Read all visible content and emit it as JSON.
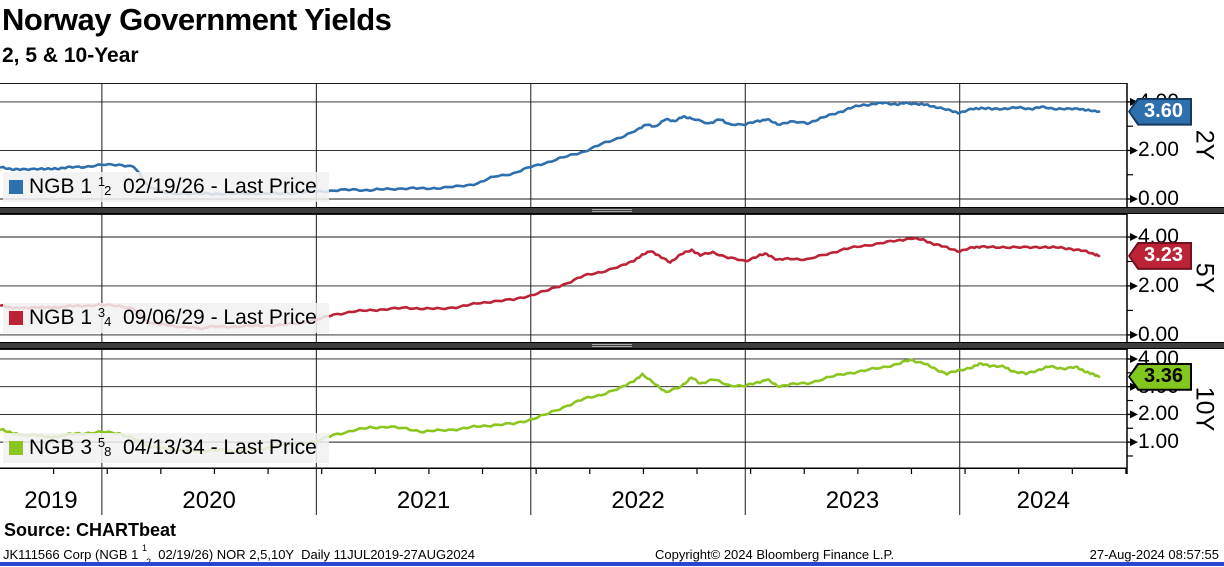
{
  "header": {
    "title": "Norway Government Yields",
    "subtitle": "2, 5 & 10-Year"
  },
  "footer": {
    "source": "Source: CHARTbeat",
    "ticker": {
      "prefix": "JK111566 Corp (NGB 1 ",
      "frac_num": "1",
      "frac_den": "2",
      "suffix": "  02/19/26) NOR 2,5,10Y  Daily 11JUL2019-27AUG2024"
    },
    "copyright": "Copyright© 2024 Bloomberg Finance L.P.",
    "timestamp": "27-Aug-2024 08:57:55"
  },
  "colors": {
    "grid": "#1a1a1a",
    "axis": "#000000",
    "separator": "#3d3d3d",
    "legend_bg": "rgba(241,241,241,0.86)",
    "bottom_strip": "#2846d2",
    "blue": "#2e6fad",
    "red": "#bc2336",
    "green": "#8cc520"
  },
  "chart_data": {
    "type": "line",
    "title": "Norway Government Yields 2, 5 & 10-Year",
    "x_axis": {
      "range": [
        2019.525,
        2024.78
      ],
      "gridline_years": [
        2020,
        2021,
        2022,
        2023,
        2024
      ],
      "labels": [
        "2019",
        "2020",
        "2021",
        "2022",
        "2023",
        "2024"
      ],
      "minor_tick_step": 0.25,
      "period": "Daily 11JUL2019-27AUG2024"
    },
    "panels": [
      {
        "axis_name": "2Y",
        "security": "NGB 1 1/2 02/19/26",
        "legend": {
          "prefix": "NGB 1 ",
          "frac_num": "1",
          "frac_den": "2",
          "suffix": "  02/19/26 - Last Price"
        },
        "last_price": "3.60",
        "line_color": "#2e6fad",
        "badge": {
          "fill": "#2e6fad",
          "border": "#16395e",
          "text_color": "#ffffff"
        },
        "ylim": [
          -0.33,
          4.78
        ],
        "yticks": [
          {
            "label": "4.00",
            "value": 4
          },
          {
            "label": "2.00",
            "value": 2
          },
          {
            "label": "0.00",
            "value": 0
          }
        ],
        "minor_yticks": [
          1,
          3
        ],
        "series": {
          "x": [
            2019.53,
            2019.58,
            2019.63,
            2019.7,
            2019.75,
            2019.8,
            2019.85,
            2019.92,
            2020.0,
            2020.08,
            2020.15,
            2020.21,
            2020.27,
            2020.33,
            2020.42,
            2020.5,
            2020.58,
            2020.67,
            2020.75,
            2020.83,
            2020.92,
            2021.0,
            2021.08,
            2021.17,
            2021.25,
            2021.33,
            2021.42,
            2021.5,
            2021.58,
            2021.67,
            2021.75,
            2021.83,
            2021.92,
            2022.0,
            2022.08,
            2022.17,
            2022.25,
            2022.33,
            2022.42,
            2022.5,
            2022.54,
            2022.58,
            2022.63,
            2022.67,
            2022.71,
            2022.75,
            2022.83,
            2022.88,
            2022.92,
            2023.0,
            2023.06,
            2023.1,
            2023.15,
            2023.21,
            2023.29,
            2023.35,
            2023.42,
            2023.48,
            2023.54,
            2023.6,
            2023.65,
            2023.71,
            2023.75,
            2023.81,
            2023.85,
            2023.9,
            2023.96,
            2024.0,
            2024.06,
            2024.1,
            2024.15,
            2024.21,
            2024.27,
            2024.33,
            2024.38,
            2024.44,
            2024.5,
            2024.56,
            2024.6,
            2024.65
          ],
          "y": [
            1.3,
            1.24,
            1.2,
            1.26,
            1.22,
            1.27,
            1.3,
            1.33,
            1.4,
            1.42,
            1.32,
            0.6,
            0.3,
            0.24,
            0.2,
            0.23,
            0.2,
            0.24,
            0.21,
            0.23,
            0.26,
            0.31,
            0.34,
            0.39,
            0.36,
            0.41,
            0.44,
            0.43,
            0.46,
            0.52,
            0.64,
            0.92,
            1.06,
            1.32,
            1.52,
            1.76,
            1.96,
            2.26,
            2.55,
            2.85,
            3.1,
            2.95,
            3.32,
            3.18,
            3.42,
            3.3,
            3.12,
            3.28,
            3.1,
            3.06,
            3.22,
            3.28,
            3.08,
            3.18,
            3.12,
            3.32,
            3.52,
            3.72,
            3.86,
            3.92,
            3.96,
            3.9,
            3.95,
            3.92,
            3.86,
            3.78,
            3.62,
            3.56,
            3.7,
            3.76,
            3.7,
            3.73,
            3.76,
            3.72,
            3.78,
            3.73,
            3.7,
            3.73,
            3.64,
            3.6
          ]
        }
      },
      {
        "axis_name": "5Y",
        "security": "NGB 1 3/4 09/06/29",
        "legend": {
          "prefix": "NGB 1 ",
          "frac_num": "3",
          "frac_den": "4",
          "suffix": "  09/06/29 - Last Price"
        },
        "last_price": "3.23",
        "line_color": "#bc2336",
        "badge": {
          "fill": "#bc2336",
          "border": "#71111f",
          "text_color": "#ffffff"
        },
        "ylim": [
          -0.29,
          4.94
        ],
        "yticks": [
          {
            "label": "4.00",
            "value": 4
          },
          {
            "label": "2.00",
            "value": 2
          },
          {
            "label": "0.00",
            "value": 0
          }
        ],
        "minor_yticks": [
          1,
          3
        ],
        "series": {
          "x": [
            2019.53,
            2019.58,
            2019.63,
            2019.7,
            2019.75,
            2019.8,
            2019.85,
            2019.92,
            2020.0,
            2020.08,
            2020.15,
            2020.21,
            2020.27,
            2020.33,
            2020.42,
            2020.46,
            2020.5,
            2020.58,
            2020.67,
            2020.75,
            2020.83,
            2020.92,
            2021.0,
            2021.08,
            2021.17,
            2021.25,
            2021.33,
            2021.42,
            2021.5,
            2021.58,
            2021.67,
            2021.75,
            2021.83,
            2021.92,
            2022.0,
            2022.08,
            2022.17,
            2022.25,
            2022.33,
            2022.42,
            2022.48,
            2022.52,
            2022.56,
            2022.6,
            2022.65,
            2022.7,
            2022.75,
            2022.79,
            2022.85,
            2022.92,
            2023.0,
            2023.06,
            2023.1,
            2023.15,
            2023.21,
            2023.29,
            2023.38,
            2023.46,
            2023.54,
            2023.63,
            2023.71,
            2023.77,
            2023.83,
            2023.88,
            2023.94,
            2024.0,
            2024.06,
            2024.1,
            2024.17,
            2024.25,
            2024.33,
            2024.4,
            2024.46,
            2024.52,
            2024.58,
            2024.63,
            2024.65
          ],
          "y": [
            1.2,
            1.12,
            1.08,
            1.15,
            1.1,
            1.14,
            1.17,
            1.2,
            1.22,
            1.2,
            1.05,
            0.55,
            0.42,
            0.38,
            0.3,
            0.26,
            0.33,
            0.34,
            0.36,
            0.37,
            0.4,
            0.48,
            0.62,
            0.82,
            0.96,
            1.0,
            1.06,
            1.1,
            1.08,
            1.06,
            1.16,
            1.28,
            1.38,
            1.44,
            1.62,
            1.82,
            2.12,
            2.42,
            2.58,
            2.8,
            3.05,
            3.25,
            3.45,
            3.2,
            2.98,
            3.28,
            3.48,
            3.25,
            3.38,
            3.15,
            3.02,
            3.22,
            3.32,
            3.06,
            3.12,
            3.08,
            3.3,
            3.5,
            3.62,
            3.75,
            3.85,
            3.95,
            3.88,
            3.72,
            3.56,
            3.42,
            3.56,
            3.62,
            3.56,
            3.6,
            3.56,
            3.6,
            3.56,
            3.52,
            3.42,
            3.3,
            3.23
          ]
        }
      },
      {
        "axis_name": "10Y",
        "security": "NGB 3 5/8 04/13/34",
        "legend": {
          "prefix": "NGB 3 ",
          "frac_num": "5",
          "frac_den": "8",
          "suffix": "  04/13/34 - Last Price"
        },
        "last_price": "3.36",
        "line_color": "#8cc520",
        "badge": {
          "fill": "#82c71e",
          "border": "#000000",
          "text_color": "#000000"
        },
        "ylim": [
          0.03,
          4.36
        ],
        "yticks": [
          {
            "label": "4.00",
            "value": 4
          },
          {
            "label": "3.00",
            "value": 3
          },
          {
            "label": "2.00",
            "value": 2
          },
          {
            "label": "1.00",
            "value": 1
          }
        ],
        "minor_yticks": [
          0.5,
          1.5,
          2.5,
          3.5
        ],
        "series": {
          "x": [
            2019.53,
            2019.58,
            2019.63,
            2019.7,
            2019.75,
            2019.8,
            2019.85,
            2019.92,
            2020.0,
            2020.08,
            2020.15,
            2020.21,
            2020.27,
            2020.33,
            2020.42,
            2020.46,
            2020.5,
            2020.58,
            2020.63,
            2020.7,
            2020.79,
            2020.88,
            2021.0,
            2021.08,
            2021.17,
            2021.25,
            2021.33,
            2021.42,
            2021.5,
            2021.58,
            2021.67,
            2021.75,
            2021.83,
            2021.92,
            2022.0,
            2022.08,
            2022.17,
            2022.25,
            2022.33,
            2022.42,
            2022.48,
            2022.52,
            2022.58,
            2022.63,
            2022.7,
            2022.75,
            2022.79,
            2022.85,
            2022.92,
            2023.0,
            2023.06,
            2023.1,
            2023.15,
            2023.21,
            2023.29,
            2023.38,
            2023.46,
            2023.54,
            2023.63,
            2023.71,
            2023.77,
            2023.83,
            2023.88,
            2023.94,
            2024.0,
            2024.06,
            2024.1,
            2024.15,
            2024.21,
            2024.25,
            2024.31,
            2024.37,
            2024.42,
            2024.48,
            2024.54,
            2024.58,
            2024.62,
            2024.65
          ],
          "y": [
            1.45,
            1.35,
            1.22,
            1.28,
            1.15,
            1.22,
            1.28,
            1.32,
            1.36,
            1.32,
            1.12,
            0.88,
            0.78,
            0.74,
            0.7,
            0.63,
            0.69,
            0.72,
            0.66,
            0.73,
            0.82,
            0.92,
            1.02,
            1.26,
            1.42,
            1.52,
            1.56,
            1.48,
            1.38,
            1.42,
            1.48,
            1.56,
            1.62,
            1.66,
            1.82,
            2.02,
            2.32,
            2.56,
            2.72,
            2.95,
            3.22,
            3.42,
            3.12,
            2.78,
            3.02,
            3.32,
            3.12,
            3.26,
            3.06,
            3.02,
            3.16,
            3.26,
            3.02,
            3.08,
            3.12,
            3.32,
            3.46,
            3.56,
            3.68,
            3.82,
            3.96,
            3.86,
            3.65,
            3.48,
            3.58,
            3.72,
            3.82,
            3.76,
            3.7,
            3.56,
            3.46,
            3.62,
            3.72,
            3.66,
            3.7,
            3.58,
            3.44,
            3.36
          ]
        }
      }
    ]
  }
}
